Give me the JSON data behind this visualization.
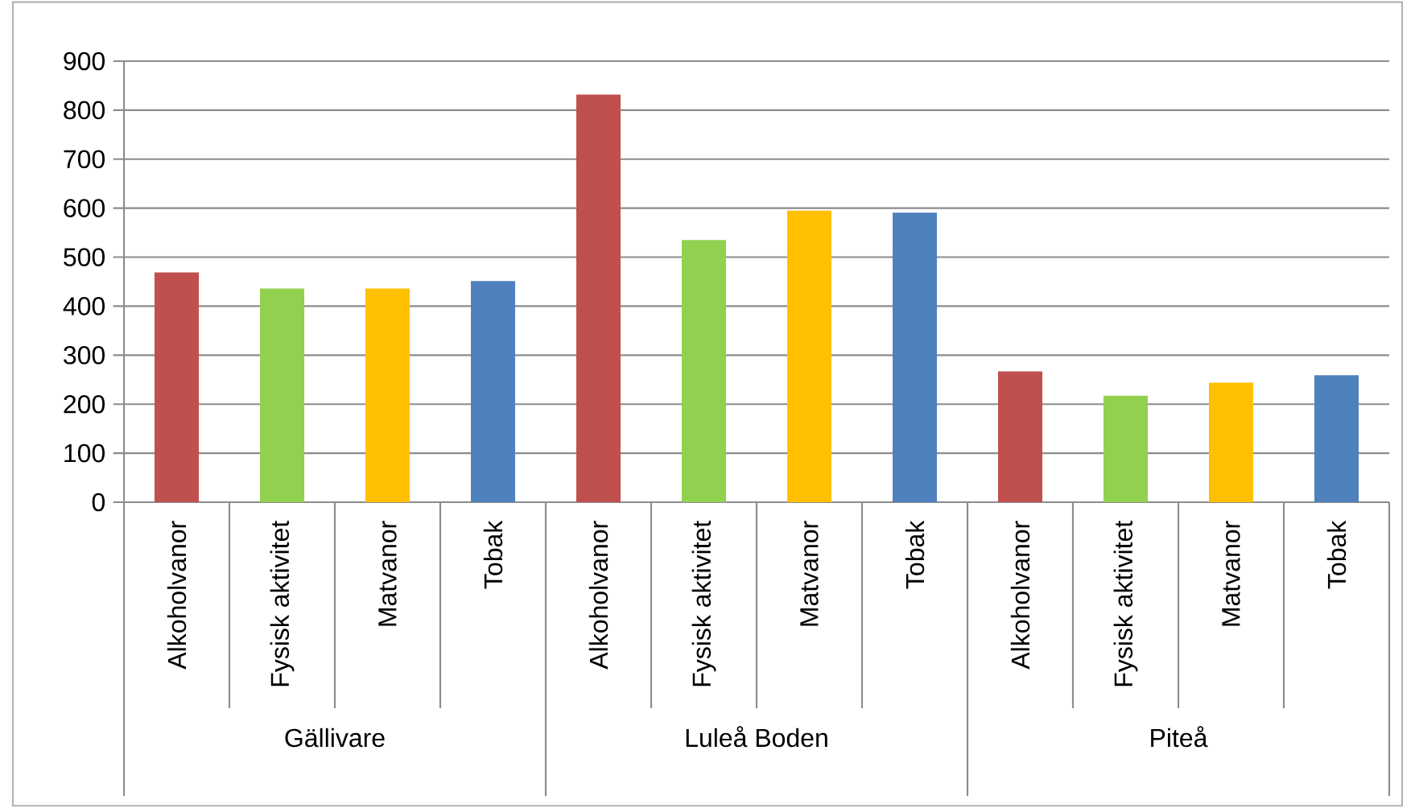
{
  "chart_data": {
    "type": "bar",
    "categories": [
      "Alkoholvanor",
      "Fysisk aktivitet",
      "Matvanor",
      "Tobak",
      "Alkoholvanor",
      "Fysisk aktivitet",
      "Matvanor",
      "Tobak",
      "Alkoholvanor",
      "Fysisk aktivitet",
      "Matvanor",
      "Tobak"
    ],
    "values": [
      469,
      436,
      436,
      451,
      832,
      535,
      595,
      591,
      267,
      217,
      244,
      259
    ],
    "colors": [
      "#c0504d",
      "#92d050",
      "#ffc000",
      "#4f81bd",
      "#c0504d",
      "#92d050",
      "#ffc000",
      "#4f81bd",
      "#c0504d",
      "#92d050",
      "#ffc000",
      "#4f81bd"
    ],
    "ylim": [
      0,
      900
    ],
    "yticks": [
      0,
      100,
      200,
      300,
      400,
      500,
      600,
      700,
      800,
      900
    ],
    "grid": "y",
    "annotations": [
      "Gällivare",
      "Luleå Boden",
      "Piteå"
    ]
  }
}
